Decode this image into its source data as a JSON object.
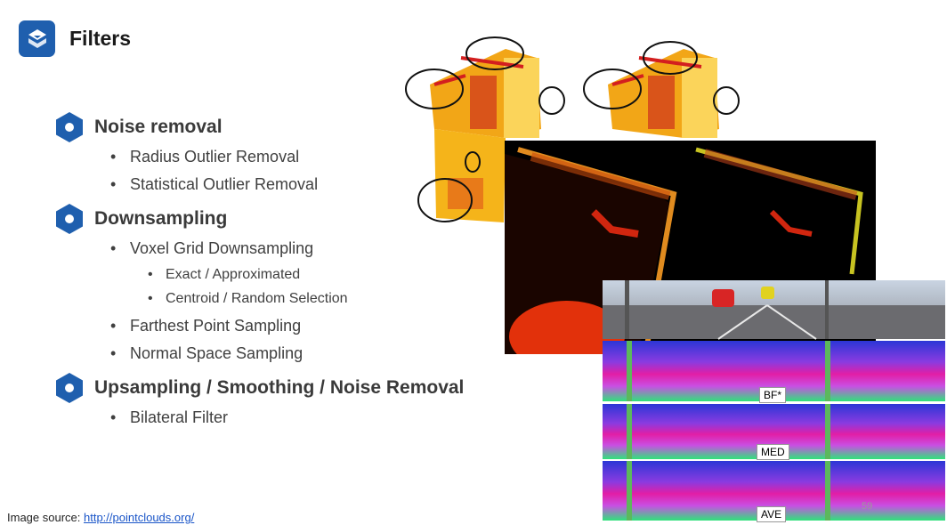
{
  "header": {
    "title": "Filters"
  },
  "sections": [
    {
      "heading": "Noise removal",
      "items": [
        {
          "label": "Radius Outlier Removal"
        },
        {
          "label": "Statistical Outlier Removal"
        }
      ]
    },
    {
      "heading": "Downsampling",
      "items": [
        {
          "label": "Voxel Grid Downsampling",
          "subitems": [
            {
              "label": "Exact / Approximated"
            },
            {
              "label": "Centroid / Random Selection"
            }
          ]
        },
        {
          "label": "Farthest Point Sampling"
        },
        {
          "label": "Normal Space Sampling"
        }
      ]
    },
    {
      "heading": "Upsampling / Smoothing / Noise Removal",
      "items": [
        {
          "label": "Bilateral Filter"
        }
      ]
    }
  ],
  "footer": {
    "source_prefix": "Image source: ",
    "source_link": "http://pointclouds.org/",
    "page_number": "59"
  },
  "figures": {
    "filter_labels": [
      "BF*",
      "MED",
      "AVE"
    ]
  },
  "colors": {
    "accent": "#1f5fae"
  }
}
